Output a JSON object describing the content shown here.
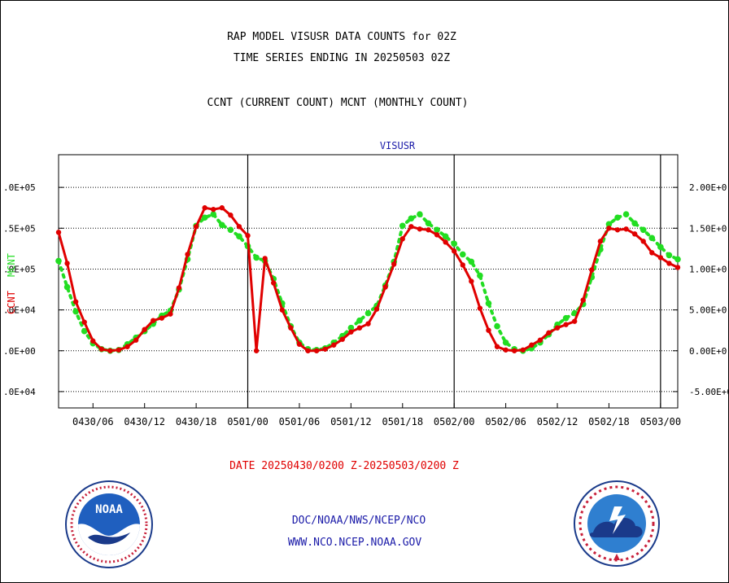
{
  "title_line1": "RAP MODEL VISUSR DATA COUNTS for 02Z",
  "title_line2": "TIME SERIES ENDING IN 20250503 02Z",
  "subtitle": "CCNT (CURRENT COUNT) MCNT (MONTHLY COUNT)",
  "date_range": "DATE 20250430/0200 Z-20250503/0200 Z",
  "footer_line1": "DOC/NOAA/NWS/NCEP/NCO",
  "footer_line2": "WWW.NCO.NCEP.NOAA.GOV",
  "colors": {
    "ccnt": "#e00000",
    "mcnt": "#22dd22",
    "plot_title": "#1a1aa8",
    "footer": "#1a1aa8"
  },
  "chart_data": {
    "type": "line",
    "title": "VISUSR",
    "x_start_hour": 0,
    "x_end_hour": 72,
    "x_ticks": [
      {
        "hour": 4,
        "label": "0430/06"
      },
      {
        "hour": 10,
        "label": "0430/12"
      },
      {
        "hour": 16,
        "label": "0430/18"
      },
      {
        "hour": 22,
        "label": "0501/00"
      },
      {
        "hour": 28,
        "label": "0501/06"
      },
      {
        "hour": 34,
        "label": "0501/12"
      },
      {
        "hour": 40,
        "label": "0501/18"
      },
      {
        "hour": 46,
        "label": "0502/00"
      },
      {
        "hour": 52,
        "label": "0502/06"
      },
      {
        "hour": 58,
        "label": "0502/12"
      },
      {
        "hour": 64,
        "label": "0502/18"
      },
      {
        "hour": 70,
        "label": "0503/00"
      }
    ],
    "day_boundaries": [
      22,
      46,
      70
    ],
    "ylim": [
      -70000,
      240000
    ],
    "left_y_ticks": [
      {
        "value": 200000,
        "label": ".0E+05"
      },
      {
        "value": 150000,
        "label": ".5E+05"
      },
      {
        "value": 100000,
        "label": ".0E+05"
      },
      {
        "value": 50000,
        "label": ".0E+04"
      },
      {
        "value": 0,
        "label": ".0E+00"
      },
      {
        "value": -50000,
        "label": ".0E+04"
      }
    ],
    "right_y_ticks": [
      {
        "value": 200000,
        "label": "2.00E+0"
      },
      {
        "value": 150000,
        "label": "1.50E+0"
      },
      {
        "value": 100000,
        "label": "1.00E+0"
      },
      {
        "value": 50000,
        "label": "5.00E+0"
      },
      {
        "value": 0,
        "label": "0.00E+0"
      },
      {
        "value": -50000,
        "label": "-5.00E+0"
      }
    ],
    "left_axis_labels": {
      "ccnt": "CCNT",
      "mcnt": "MCNT"
    },
    "grid": true,
    "series": [
      {
        "name": "CCNT",
        "hours": [
          0,
          1,
          2,
          3,
          4,
          5,
          6,
          7,
          8,
          9,
          10,
          11,
          12,
          13,
          14,
          15,
          16,
          17,
          18,
          19,
          20,
          21,
          22,
          23,
          24,
          25,
          26,
          27,
          28,
          29,
          30,
          31,
          32,
          33,
          34,
          35,
          36,
          37,
          38,
          39,
          40,
          41,
          42,
          43,
          44,
          45,
          46,
          47,
          48,
          49,
          50,
          51,
          52,
          53,
          54,
          55,
          56,
          57,
          58,
          59,
          60,
          61,
          62,
          63,
          64,
          65,
          66,
          67,
          68,
          69,
          70,
          71,
          72
        ],
        "values": [
          145000,
          107000,
          60000,
          35000,
          12000,
          2000,
          0,
          1000,
          5000,
          13000,
          26000,
          37000,
          40000,
          45000,
          77000,
          118000,
          152000,
          175000,
          173000,
          175000,
          166000,
          152000,
          141000,
          0,
          113000,
          83000,
          50000,
          28000,
          8000,
          0,
          0,
          2000,
          7000,
          14000,
          23000,
          28000,
          33000,
          51000,
          78000,
          106000,
          137000,
          152000,
          149000,
          148000,
          142000,
          133000,
          122000,
          105000,
          85000,
          52000,
          25000,
          5000,
          1000,
          0,
          1000,
          7000,
          13000,
          22000,
          28000,
          32000,
          36000,
          62000,
          99000,
          134000,
          150000,
          148000,
          149000,
          143000,
          134000,
          120000,
          114000,
          107000,
          102000
        ]
      },
      {
        "name": "MCNT",
        "hours": [
          0,
          1,
          2,
          3,
          4,
          5,
          6,
          7,
          8,
          9,
          10,
          11,
          12,
          13,
          14,
          15,
          16,
          17,
          18,
          19,
          20,
          21,
          22,
          23,
          24,
          25,
          26,
          27,
          28,
          29,
          30,
          31,
          32,
          33,
          34,
          35,
          36,
          37,
          38,
          39,
          40,
          41,
          42,
          43,
          44,
          45,
          46,
          47,
          48,
          49,
          50,
          51,
          52,
          53,
          54,
          55,
          56,
          57,
          58,
          59,
          60,
          61,
          62,
          63,
          64,
          65,
          66,
          67,
          68,
          69,
          70,
          71,
          72
        ],
        "values": [
          110000,
          78000,
          48000,
          24000,
          9000,
          2000,
          0,
          1000,
          8000,
          16000,
          24000,
          33000,
          43000,
          49000,
          75000,
          112000,
          153000,
          163000,
          167000,
          154000,
          148000,
          140000,
          128000,
          114000,
          110000,
          88000,
          58000,
          30000,
          10000,
          2000,
          1000,
          3000,
          10000,
          18000,
          28000,
          37000,
          46000,
          55000,
          80000,
          109000,
          153000,
          162000,
          167000,
          156000,
          148000,
          140000,
          131000,
          118000,
          109000,
          92000,
          58000,
          30000,
          10000,
          2000,
          0,
          3000,
          10000,
          20000,
          32000,
          40000,
          46000,
          57000,
          90000,
          124000,
          155000,
          163000,
          167000,
          156000,
          148000,
          138000,
          127000,
          117000,
          112000
        ]
      }
    ]
  }
}
